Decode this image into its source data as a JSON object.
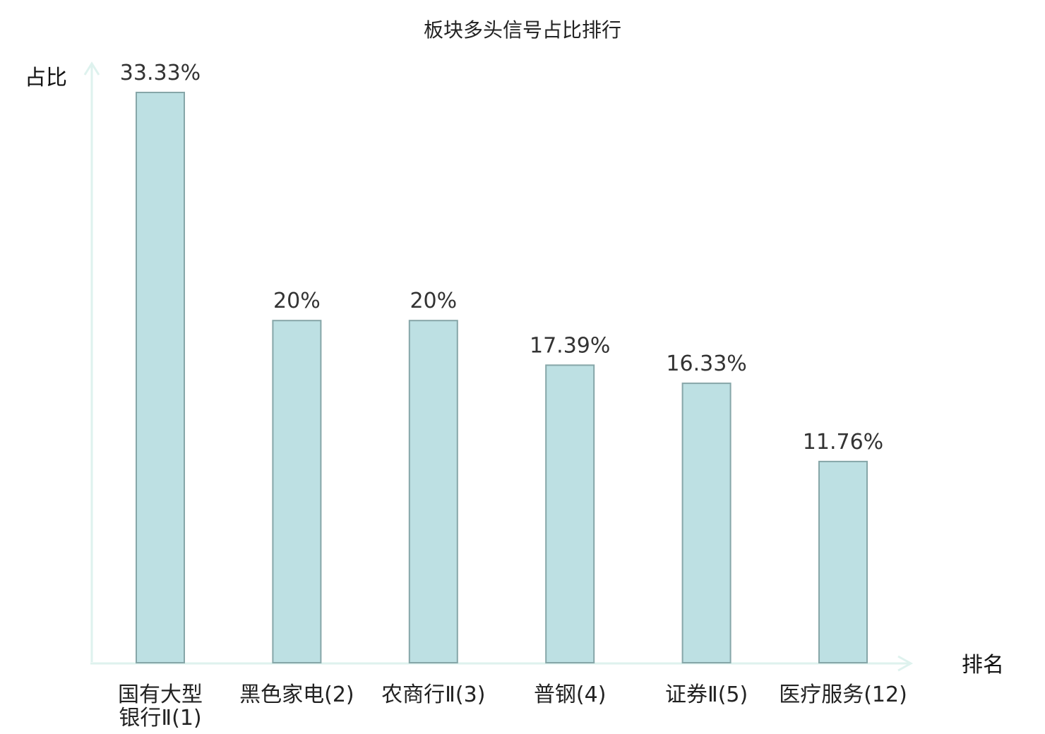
{
  "chart_data": {
    "type": "bar",
    "title": "板块多头信号占比排行",
    "ylabel": "占比",
    "xlabel": "排名",
    "categories": [
      {
        "lines": [
          "国有大型",
          "银行Ⅱ(1)"
        ],
        "highlight": false
      },
      {
        "lines": [
          "黑色家电(2)"
        ],
        "highlight": false
      },
      {
        "lines": [
          "农商行Ⅱ(3)"
        ],
        "highlight": false
      },
      {
        "lines": [
          "普钢(4)"
        ],
        "highlight": false
      },
      {
        "lines": [
          "证券Ⅱ(5)"
        ],
        "highlight": false
      },
      {
        "lines": [
          "医疗服务(12)"
        ],
        "highlight": true
      }
    ],
    "values": [
      33.33,
      20,
      20,
      17.39,
      16.33,
      11.76
    ],
    "value_labels": [
      "33.33%",
      "20%",
      "20%",
      "17.39%",
      "16.33%",
      "11.76%"
    ],
    "ylim": [
      0,
      35
    ],
    "grid": false,
    "colors": {
      "bar_fill": "#bde0e3",
      "bar_stroke": "#86a6a8",
      "axis": "#def2ee",
      "highlight_text": "#e02020",
      "text": "#222222"
    }
  }
}
